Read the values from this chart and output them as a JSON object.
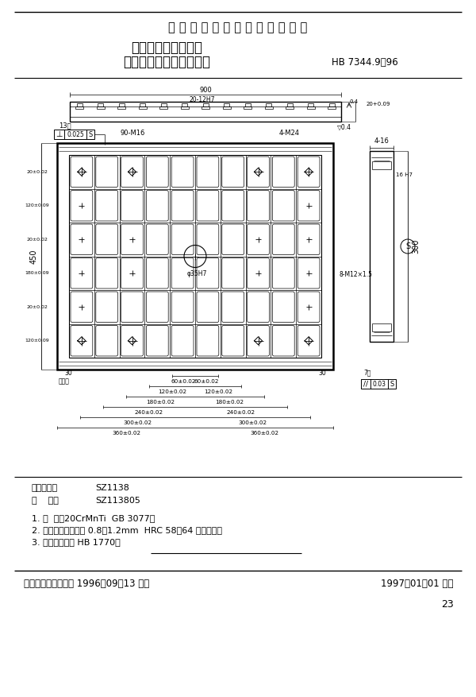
{
  "title_line1": "中 华 人 民 共 和 国 航 空 工 业 标 准",
  "title_line2": "数控机床用夹具元件",
  "title_line3": "中型槽定位长方型基础板",
  "std_number": "HB 7344.9－96",
  "classify_label1": "分类代号：",
  "classify_label2": "SZ1138",
  "mark_label1": "标    记：",
  "mark_label2": "SZ113805",
  "note1": "1. 材  料：20CrMnTi  GB 3077。",
  "note2": "2. 热处理：渗碳深度 0.8～1.2mm  HRC 58～64 人工时效。",
  "note3": "3. 技术条件：按 HB 1770。",
  "footer_left": "中国航空工业总公司 1996－09－13 发布",
  "footer_right": "1997－01－01 实施",
  "page_number": "23",
  "slot13": "13槽",
  "slot7": "7槽",
  "perp_val": "0.025",
  "para_val": "0.03",
  "label_90M16": "90-M16",
  "label_4M24": "4-M24",
  "label_8M12": "8-M12×1.5",
  "label_phi35": "φ35H7",
  "label_450": "450",
  "label_300": "300",
  "label_900": "900",
  "label_2012H7": "20-12H7",
  "label_416": "4-16",
  "label_16H7": "16 H7",
  "label_30a": "30",
  "label_30b": "30",
  "label_jijian": "极见处",
  "dim_bottom": [
    {
      "half_mm": 60,
      "label": "60±0.02"
    },
    {
      "half_mm": 120,
      "label": "120±0.02"
    },
    {
      "half_mm": 180,
      "label": "180±0.02"
    },
    {
      "half_mm": 240,
      "label": "240±0.02"
    },
    {
      "half_mm": 300,
      "label": "300±0.02"
    },
    {
      "half_mm": 360,
      "label": "360±0.02"
    }
  ],
  "dim_left_labels": [
    "20±0.02",
    "120±0.09",
    "20±0.02",
    "180±0.09",
    "20±0.02",
    "120±0.09",
    "20±0.02"
  ],
  "bg_color": "#ffffff"
}
